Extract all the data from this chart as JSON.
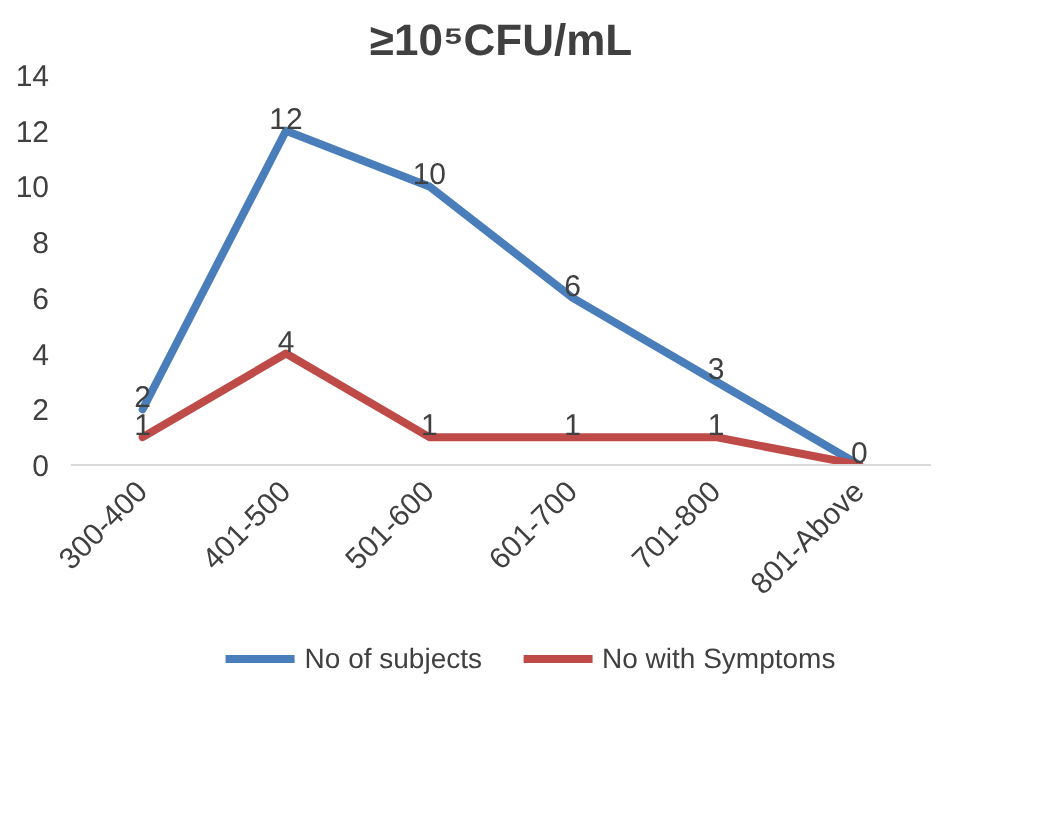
{
  "chart_data": {
    "type": "line",
    "title": "≥10⁵CFU/mL",
    "categories": [
      "300-400",
      "401-500",
      "501-600",
      "601-700",
      "701-800",
      "801-Above"
    ],
    "series": [
      {
        "name": "No of subjects",
        "color": "#4a7ebb",
        "values": [
          2,
          12,
          10,
          6,
          3,
          0
        ],
        "value_labels": [
          "2",
          "12",
          "10",
          "6",
          "3",
          null
        ]
      },
      {
        "name": "No with Symptoms",
        "color": "#be4b48",
        "values": [
          1,
          4,
          1,
          1,
          1,
          0
        ],
        "value_labels": [
          "1",
          "4",
          "1",
          "1",
          "1",
          "0"
        ]
      }
    ],
    "ylim": [
      0,
      14
    ],
    "yticks": [
      0,
      2,
      4,
      6,
      8,
      10,
      12,
      14
    ],
    "grid": false,
    "legend": "bottom",
    "marker": "none",
    "line_style": "solid"
  }
}
